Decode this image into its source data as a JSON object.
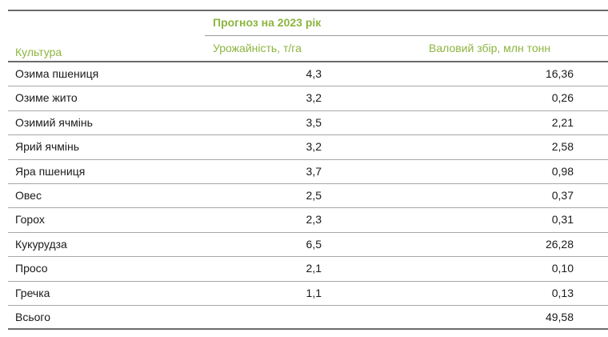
{
  "table": {
    "header": {
      "crop_label": "Культура",
      "group_label": "Прогноз на 2023 рік",
      "yield_label": "Урожайність, т/га",
      "harvest_label": "Валовий збір, млн тонн"
    },
    "rows": [
      {
        "crop": "Озима пшениця",
        "yield": "4,3",
        "harvest": "16,36"
      },
      {
        "crop": "Озиме жито",
        "yield": "3,2",
        "harvest": "0,26"
      },
      {
        "crop": "Озимий ячмінь",
        "yield": "3,5",
        "harvest": "2,21"
      },
      {
        "crop": "Ярий ячмінь",
        "yield": "3,2",
        "harvest": "2,58"
      },
      {
        "crop": "Яра пшениця",
        "yield": "3,7",
        "harvest": "0,98"
      },
      {
        "crop": "Овес",
        "yield": "2,5",
        "harvest": "0,37"
      },
      {
        "crop": "Горох",
        "yield": "2,3",
        "harvest": "0,31"
      },
      {
        "crop": "Кукурудза",
        "yield": "6,5",
        "harvest": "26,28"
      },
      {
        "crop": "Просо",
        "yield": "2,1",
        "harvest": "0,10"
      },
      {
        "crop": "Гречка",
        "yield": "1,1",
        "harvest": "0,13"
      },
      {
        "crop": "Всього",
        "yield": "",
        "harvest": "49,58"
      }
    ]
  },
  "colors": {
    "header_text": "#8cb53f",
    "body_text": "#1a1a1a",
    "rule": "#6b6b6b",
    "row_separator": "#a8a8a8"
  }
}
